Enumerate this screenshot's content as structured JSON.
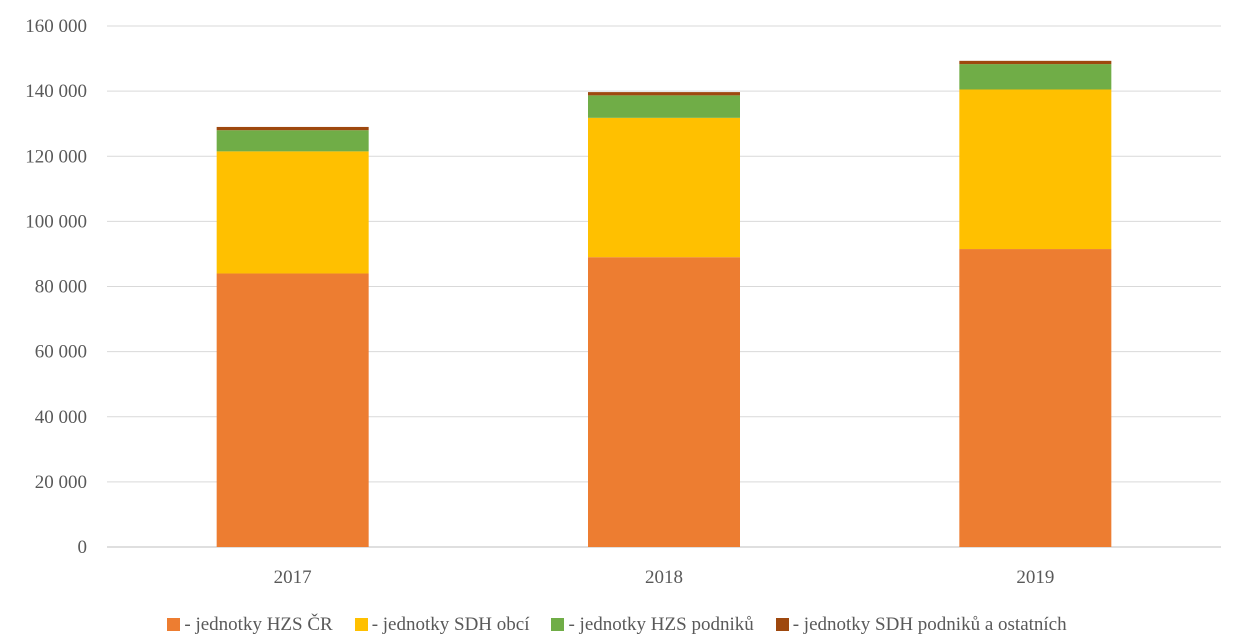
{
  "chart_data": {
    "type": "bar",
    "stacked": true,
    "categories": [
      "2017",
      "2018",
      "2019"
    ],
    "series": [
      {
        "name": "- jednotky HZS ČR",
        "color": "#ED7D31",
        "values": [
          84000,
          89000,
          91500
        ]
      },
      {
        "name": "- jednotky SDH obcí",
        "color": "#FFC000",
        "values": [
          37500,
          42800,
          49000
        ]
      },
      {
        "name": "- jednotky HZS podniků",
        "color": "#70AD47",
        "values": [
          6500,
          6900,
          7800
        ]
      },
      {
        "name": "- jednotky SDH podniků a ostatních",
        "color": "#9E480E",
        "values": [
          1000,
          1000,
          1000
        ]
      }
    ],
    "ylim": [
      0,
      160000
    ],
    "yticks": [
      0,
      20000,
      40000,
      60000,
      80000,
      100000,
      120000,
      140000,
      160000
    ],
    "ytick_labels": [
      "0",
      "20 000",
      "40 000",
      "60 000",
      "80 000",
      "100 000",
      "120 000",
      "140 000",
      "160 000"
    ],
    "grid": true,
    "legend_position": "bottom",
    "title": "",
    "xlabel": "",
    "ylabel": ""
  }
}
